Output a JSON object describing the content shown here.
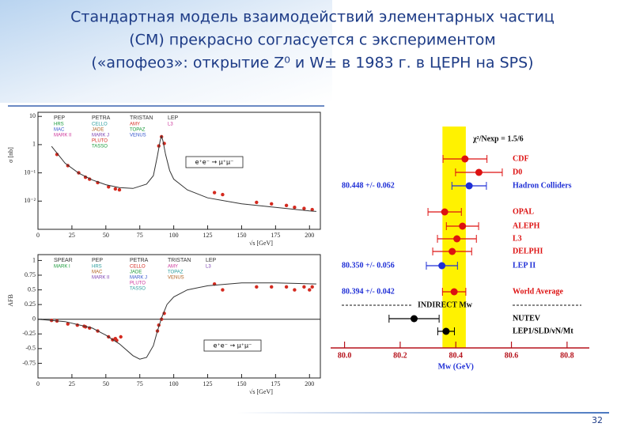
{
  "slide": {
    "title_lines": [
      "Стандартная модель взаимодействий элементарных частиц",
      "(СМ) прекрасно согласуется с экспериментом",
      "(«апофеоз»: открытие Z⁰ и W± в 1983 г. в ЦЕРН на SPS)"
    ],
    "page_number": "32"
  },
  "chart_data": [
    {
      "type": "scatter",
      "ylabel": "σ [nb]",
      "xlabel": "√s [GeV]",
      "annotation": "e⁺e⁻ → μ⁺μ⁻",
      "log_y": true,
      "xlim": [
        0,
        208
      ],
      "xticks": [
        0,
        25,
        50,
        75,
        100,
        125,
        150,
        175,
        200
      ],
      "ylim": [
        0.001,
        14
      ],
      "yticks": [
        10,
        1,
        {
          "value": 0.1,
          "label": "10⁻¹"
        },
        {
          "value": 0.01,
          "label": "10⁻²"
        }
      ],
      "legend": [
        {
          "group": "PEP",
          "entries": [
            "HRS",
            "MAC",
            "MARK II"
          ]
        },
        {
          "group": "PETRA",
          "entries": [
            "CELLO",
            "JADE",
            "MARK J",
            "PLUTO",
            "TASSO"
          ]
        },
        {
          "group": "TRISTAN",
          "entries": [
            "AMY",
            "TOPAZ",
            "VENUS"
          ]
        },
        {
          "group": "LEP",
          "entries": [
            "L3"
          ]
        }
      ],
      "series": [
        {
          "style": "points",
          "color": "#d42a1f",
          "x": [
            14,
            22,
            30,
            35,
            38,
            44,
            52,
            57,
            60,
            89,
            91,
            93,
            130,
            136,
            161,
            172,
            183,
            189,
            196,
            202
          ],
          "values": [
            0.45,
            0.18,
            0.1,
            0.07,
            0.06,
            0.045,
            0.032,
            0.027,
            0.025,
            0.9,
            1.9,
            1.1,
            0.02,
            0.017,
            0.009,
            0.008,
            0.007,
            0.006,
            0.0055,
            0.005
          ]
        },
        {
          "style": "line",
          "color": "#333333",
          "x": [
            10,
            20,
            30,
            40,
            50,
            60,
            70,
            80,
            85,
            88,
            90,
            91,
            92,
            94,
            97,
            100,
            110,
            125,
            150,
            175,
            200,
            205
          ],
          "values": [
            0.87,
            0.22,
            0.098,
            0.056,
            0.038,
            0.03,
            0.028,
            0.04,
            0.08,
            0.4,
            1.4,
            2.0,
            1.4,
            0.45,
            0.12,
            0.06,
            0.025,
            0.013,
            0.008,
            0.006,
            0.0045,
            0.0043
          ]
        }
      ]
    },
    {
      "type": "scatter",
      "ylabel": "AFB",
      "xlabel": "√s [GeV]",
      "annotation": "e⁺e⁻ → μ⁺μ⁻",
      "log_y": false,
      "xlim": [
        0,
        208
      ],
      "xticks": [
        0,
        25,
        50,
        75,
        100,
        125,
        150,
        175,
        200
      ],
      "ylim": [
        -1,
        1.1
      ],
      "yticks": [
        1,
        0.75,
        0.5,
        0.25,
        0,
        -0.25,
        -0.5,
        -0.75
      ],
      "legend": [
        {
          "group": "SPEAR",
          "entries": [
            "MARK I"
          ]
        },
        {
          "group": "PEP",
          "entries": [
            "HRS",
            "MAC",
            "MARK II"
          ]
        },
        {
          "group": "PETRA",
          "entries": [
            "CELLO",
            "JADE",
            "MARK J",
            "PLUTO",
            "TASSO"
          ]
        },
        {
          "group": "TRISTAN",
          "entries": [
            "AMY",
            "TOPAZ",
            "VENUS"
          ]
        },
        {
          "group": "LEP",
          "entries": [
            "L3"
          ]
        }
      ],
      "series": [
        {
          "style": "points",
          "color": "#d42a1f",
          "x": [
            10,
            14,
            22,
            29,
            34,
            35,
            38,
            44,
            52,
            55,
            57,
            58,
            61,
            88,
            89,
            91,
            93,
            130,
            136,
            161,
            172,
            183,
            189,
            196,
            200,
            202
          ],
          "values": [
            -0.02,
            -0.03,
            -0.08,
            -0.1,
            -0.12,
            -0.13,
            -0.15,
            -0.2,
            -0.3,
            -0.35,
            -0.33,
            -0.36,
            -0.3,
            -0.2,
            -0.1,
            0.0,
            0.1,
            0.6,
            0.5,
            0.55,
            0.55,
            0.55,
            0.5,
            0.55,
            0.5,
            0.55
          ]
        },
        {
          "style": "line",
          "color": "#333333",
          "x": [
            0,
            20,
            40,
            50,
            60,
            70,
            75,
            80,
            85,
            88,
            91,
            95,
            100,
            110,
            125,
            150,
            175,
            205
          ],
          "values": [
            0,
            -0.04,
            -0.15,
            -0.27,
            -0.42,
            -0.62,
            -0.68,
            -0.65,
            -0.45,
            -0.2,
            0.02,
            0.25,
            0.38,
            0.5,
            0.57,
            0.62,
            0.62,
            0.6
          ]
        }
      ]
    },
    {
      "type": "errorbar",
      "xlabel": "Mw (GeV)",
      "annotation": "χ²/Nexp = 1.5/6",
      "section_label": "INDIRECT Mw",
      "band_color": "#fff200",
      "xlim": [
        79.95,
        80.88
      ],
      "xticks": [
        {
          "value": 80,
          "label": "80.0"
        },
        80.2,
        80.4,
        80.6,
        80.8
      ],
      "categories": [
        "CDF",
        "D0",
        "Hadron Colliders",
        "OPAL",
        "ALEPH",
        "L3",
        "DELPHI",
        "LEP II",
        "World Average",
        "NUTEV",
        "LEP1/SLD/νN/Mt"
      ],
      "values": [
        80.433,
        80.483,
        80.448,
        80.36,
        80.424,
        80.404,
        80.387,
        80.35,
        80.394,
        80.25,
        80.365
      ],
      "errors": [
        0.079,
        0.084,
        0.062,
        0.06,
        0.058,
        0.07,
        0.07,
        0.056,
        0.042,
        0.09,
        0.03
      ],
      "value_labels": [
        null,
        null,
        "80.448 +/- 0.062",
        null,
        null,
        null,
        null,
        "80.350 +/- 0.056",
        "80.394 +/- 0.042",
        null,
        null
      ],
      "colors": [
        "#dd1111",
        "#dd1111",
        "#1f2fd6",
        "#dd1111",
        "#dd1111",
        "#dd1111",
        "#dd1111",
        "#1f2fd6",
        "#dd1111",
        "#000000",
        "#000000"
      ]
    }
  ]
}
